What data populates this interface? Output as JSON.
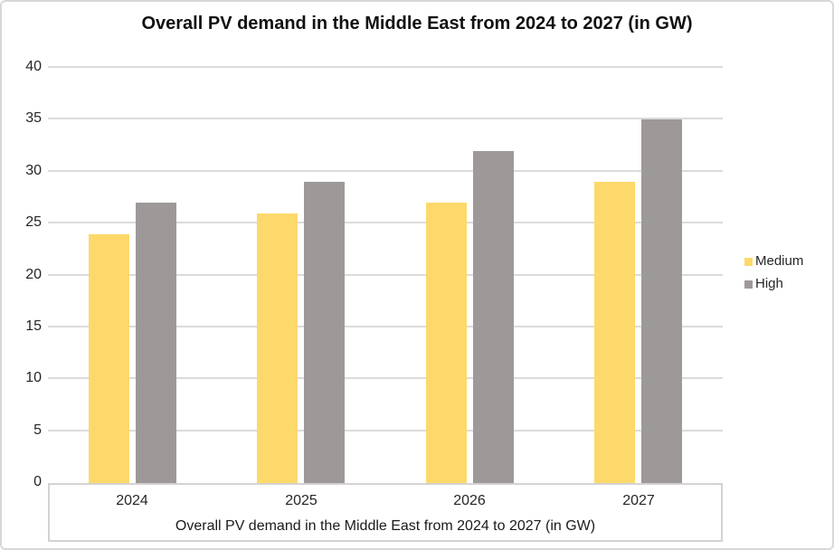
{
  "title": "Overall PV demand in the Middle East from 2024 to 2027 (in GW)",
  "colors": {
    "medium_bar": "#FDD96B",
    "high_bar": "#9E9999",
    "gridline": "#DBDBDB",
    "axis_box_border": "#D4D2D2",
    "outer_border": "#D8D8D8",
    "text": "#262626"
  },
  "chart_data": {
    "type": "bar",
    "title": "Overall PV demand in the Middle East from 2024 to 2027 (in GW)",
    "xlabel": "Overall PV demand in the Middle East from 2024 to 2027 (in GW)",
    "ylabel": "",
    "categories": [
      "2024",
      "2025",
      "2026",
      "2027"
    ],
    "series": [
      {
        "name": "Medium",
        "color": "#FDD96B",
        "values": [
          24,
          26,
          27,
          29
        ]
      },
      {
        "name": "High",
        "color": "#9E9999",
        "values": [
          27,
          29,
          32,
          35
        ]
      }
    ],
    "ylim": [
      0,
      40
    ],
    "yticks": [
      0,
      5,
      10,
      15,
      20,
      25,
      30,
      35,
      40
    ],
    "grid": true,
    "legend_position": "right"
  },
  "legend": {
    "items": [
      {
        "label": "Medium",
        "color": "#FDD96B"
      },
      {
        "label": "High",
        "color": "#9E9999"
      }
    ]
  }
}
